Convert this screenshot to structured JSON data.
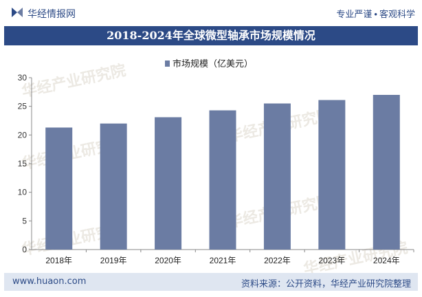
{
  "header": {
    "brand": "华经情报网",
    "tagline_left": "专业严谨",
    "tagline_sep": "•",
    "tagline_right": "客观科学"
  },
  "watermarks": [
    "华经产业研究院",
    "华经产业研究院",
    "华经产业研究院",
    "华经产业研究院",
    "华经产业研究院",
    "华经产业研究院"
  ],
  "footer": {
    "site": "www.huaon.com",
    "source": "资料来源：公开资料，华经产业研究院整理"
  },
  "colors": {
    "bar": "#6b7ca3",
    "brand": "#2c4a86",
    "footer_bg": "#dfe6f1"
  },
  "chart_data": {
    "type": "bar",
    "title": "2018-2024年全球微型轴承市场规模情况",
    "categories": [
      "2018年",
      "2019年",
      "2020年",
      "2021年",
      "2022年",
      "2023年",
      "2024年"
    ],
    "series": [
      {
        "name": "市场规模（亿美元）",
        "values": [
          21.3,
          22.0,
          23.1,
          24.3,
          25.5,
          26.1,
          27.0
        ]
      }
    ],
    "ylim": [
      0,
      30
    ],
    "yticks": [
      0,
      5,
      10,
      15,
      20,
      25,
      30
    ],
    "grid": false,
    "legend": "top-center"
  }
}
